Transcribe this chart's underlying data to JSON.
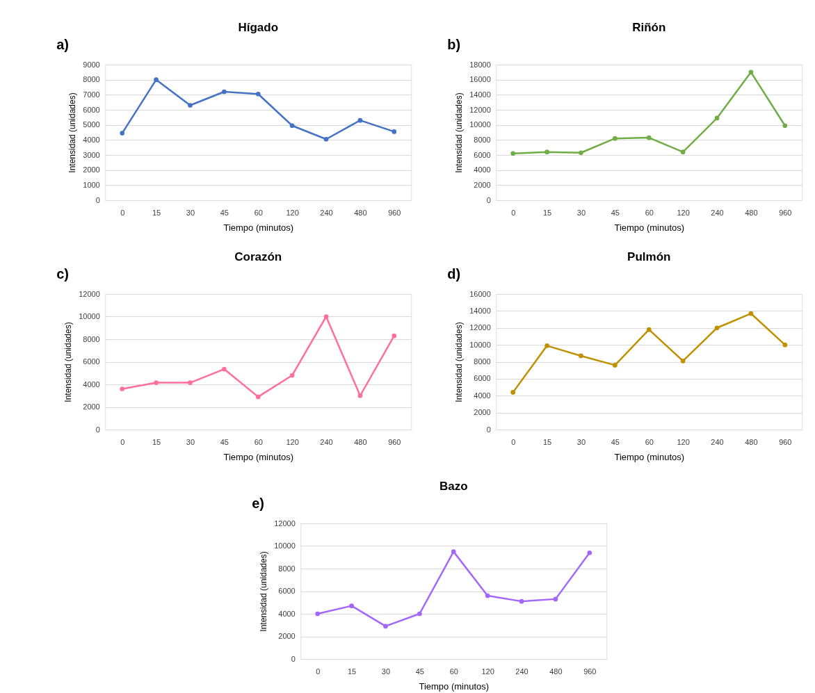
{
  "chart_data": [
    {
      "type": "line",
      "title": "Hígado",
      "annotations": [
        "a)"
      ],
      "xlabel": "Tiempo (minutos)",
      "ylabel": "Intensidad (unidades)",
      "categories": [
        "0",
        "15",
        "30",
        "45",
        "60",
        "120",
        "240",
        "480",
        "960"
      ],
      "series": [
        {
          "color": "#4472c4",
          "values": [
            4450,
            8000,
            6300,
            7200,
            7050,
            4950,
            4050,
            5300,
            4550
          ]
        }
      ],
      "ylim": [
        0,
        9000
      ],
      "yticks": [
        0,
        1000,
        2000,
        3000,
        4000,
        5000,
        6000,
        7000,
        8000,
        9000
      ],
      "grid": "y",
      "marker": "circle",
      "line_style": "solid"
    },
    {
      "type": "line",
      "title": "Riñón",
      "annotations": [
        "b)"
      ],
      "xlabel": "Tiempo (minutos)",
      "ylabel": "Intensidad (unidades)",
      "categories": [
        "0",
        "15",
        "30",
        "45",
        "60",
        "120",
        "240",
        "480",
        "960"
      ],
      "series": [
        {
          "color": "#70ad47",
          "values": [
            6200,
            6400,
            6300,
            8200,
            8300,
            6400,
            10900,
            17000,
            9900
          ]
        }
      ],
      "ylim": [
        0,
        18000
      ],
      "yticks": [
        0,
        2000,
        4000,
        6000,
        8000,
        10000,
        12000,
        14000,
        16000,
        18000
      ],
      "grid": "y",
      "marker": "circle",
      "line_style": "solid"
    },
    {
      "type": "line",
      "title": "Corazón",
      "annotations": [
        "c)"
      ],
      "xlabel": "Tiempo (minutos)",
      "ylabel": "Intensidad (unidades)",
      "categories": [
        "0",
        "15",
        "30",
        "45",
        "60",
        "120",
        "240",
        "480",
        "960"
      ],
      "series": [
        {
          "color": "#ff6f9c",
          "values": [
            3600,
            4150,
            4150,
            5350,
            2900,
            4800,
            10000,
            3000,
            8300
          ]
        }
      ],
      "ylim": [
        0,
        12000
      ],
      "yticks": [
        0,
        2000,
        4000,
        6000,
        8000,
        10000,
        12000
      ],
      "grid": "y",
      "marker": "circle",
      "line_style": "solid"
    },
    {
      "type": "line",
      "title": "Pulmón",
      "annotations": [
        "d)"
      ],
      "xlabel": "Tiempo (minutos)",
      "ylabel": "Intensidad (unidades)",
      "categories": [
        "0",
        "15",
        "30",
        "45",
        "60",
        "120",
        "240",
        "480",
        "960"
      ],
      "series": [
        {
          "color": "#bf9000",
          "values": [
            4400,
            9900,
            8700,
            7600,
            11800,
            8100,
            12000,
            13700,
            10000
          ]
        }
      ],
      "ylim": [
        0,
        16000
      ],
      "yticks": [
        0,
        2000,
        4000,
        6000,
        8000,
        10000,
        12000,
        14000,
        16000
      ],
      "grid": "y",
      "marker": "circle",
      "line_style": "solid"
    },
    {
      "type": "line",
      "title": "Bazo",
      "annotations": [
        "e)"
      ],
      "xlabel": "Tiempo (minutos)",
      "ylabel": "Intensidad (unidades)",
      "categories": [
        "0",
        "15",
        "30",
        "45",
        "60",
        "120",
        "240",
        "480",
        "960"
      ],
      "series": [
        {
          "color": "#a366ff",
          "values": [
            4000,
            4700,
            2900,
            4000,
            9500,
            5600,
            5100,
            5300,
            9400
          ]
        }
      ],
      "ylim": [
        0,
        12000
      ],
      "yticks": [
        0,
        2000,
        4000,
        6000,
        8000,
        10000,
        12000
      ],
      "grid": "y",
      "marker": "circle",
      "line_style": "solid"
    }
  ]
}
